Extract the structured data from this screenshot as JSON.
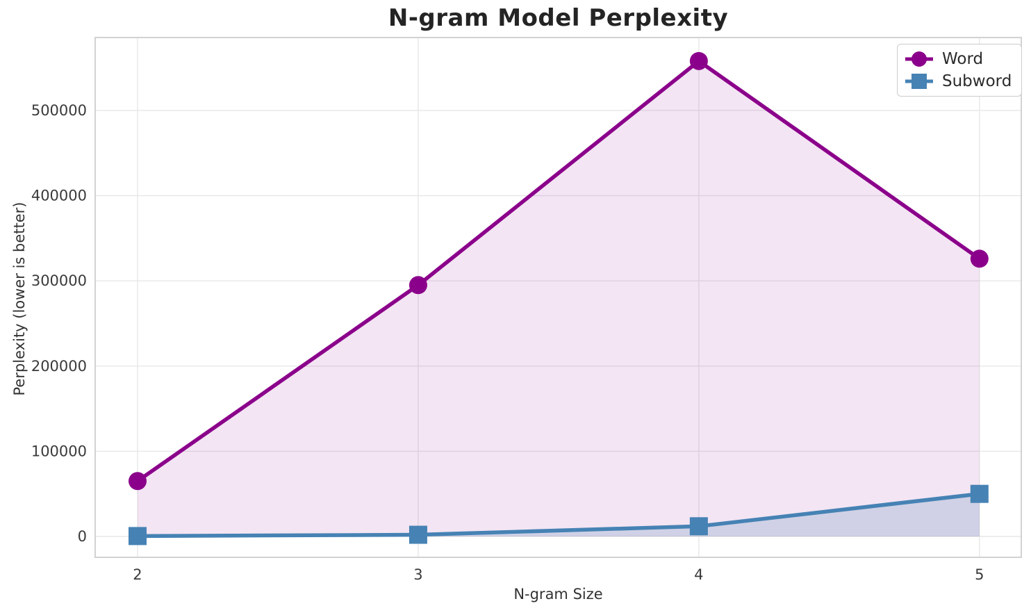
{
  "title": "N-gram Model Perplexity",
  "colors": {
    "word": "#8B008B",
    "subword": "#4682B4",
    "grid": "#e7e7e7",
    "spine": "#d2d2d2",
    "tick_text": "#3a3a3a",
    "background": "#ffffff"
  },
  "chart_data": {
    "type": "line",
    "title": "N-gram Model Perplexity",
    "xlabel": "N-gram Size",
    "ylabel": "Perplexity (lower is better)",
    "x": [
      2,
      3,
      4,
      5
    ],
    "series": [
      {
        "name": "Word",
        "values": [
          65000,
          295000,
          558000,
          326000
        ],
        "color": "#8B008B",
        "marker": "circle",
        "fill_to_zero": true,
        "fill_opacity": 0.1
      },
      {
        "name": "Subword",
        "values": [
          500,
          2000,
          12000,
          50000
        ],
        "color": "#4682B4",
        "marker": "square",
        "fill_to_zero": true,
        "fill_opacity": 0.2
      }
    ],
    "xticks": [
      2,
      3,
      4,
      5
    ],
    "yticks": [
      0,
      100000,
      200000,
      300000,
      400000,
      500000
    ],
    "xlim": [
      1.849,
      5.149
    ],
    "ylim": [
      -24470,
      585600
    ],
    "grid": true,
    "legend_position": "upper right"
  },
  "legend": {
    "items": [
      {
        "label": "Word"
      },
      {
        "label": "Subword"
      }
    ]
  }
}
